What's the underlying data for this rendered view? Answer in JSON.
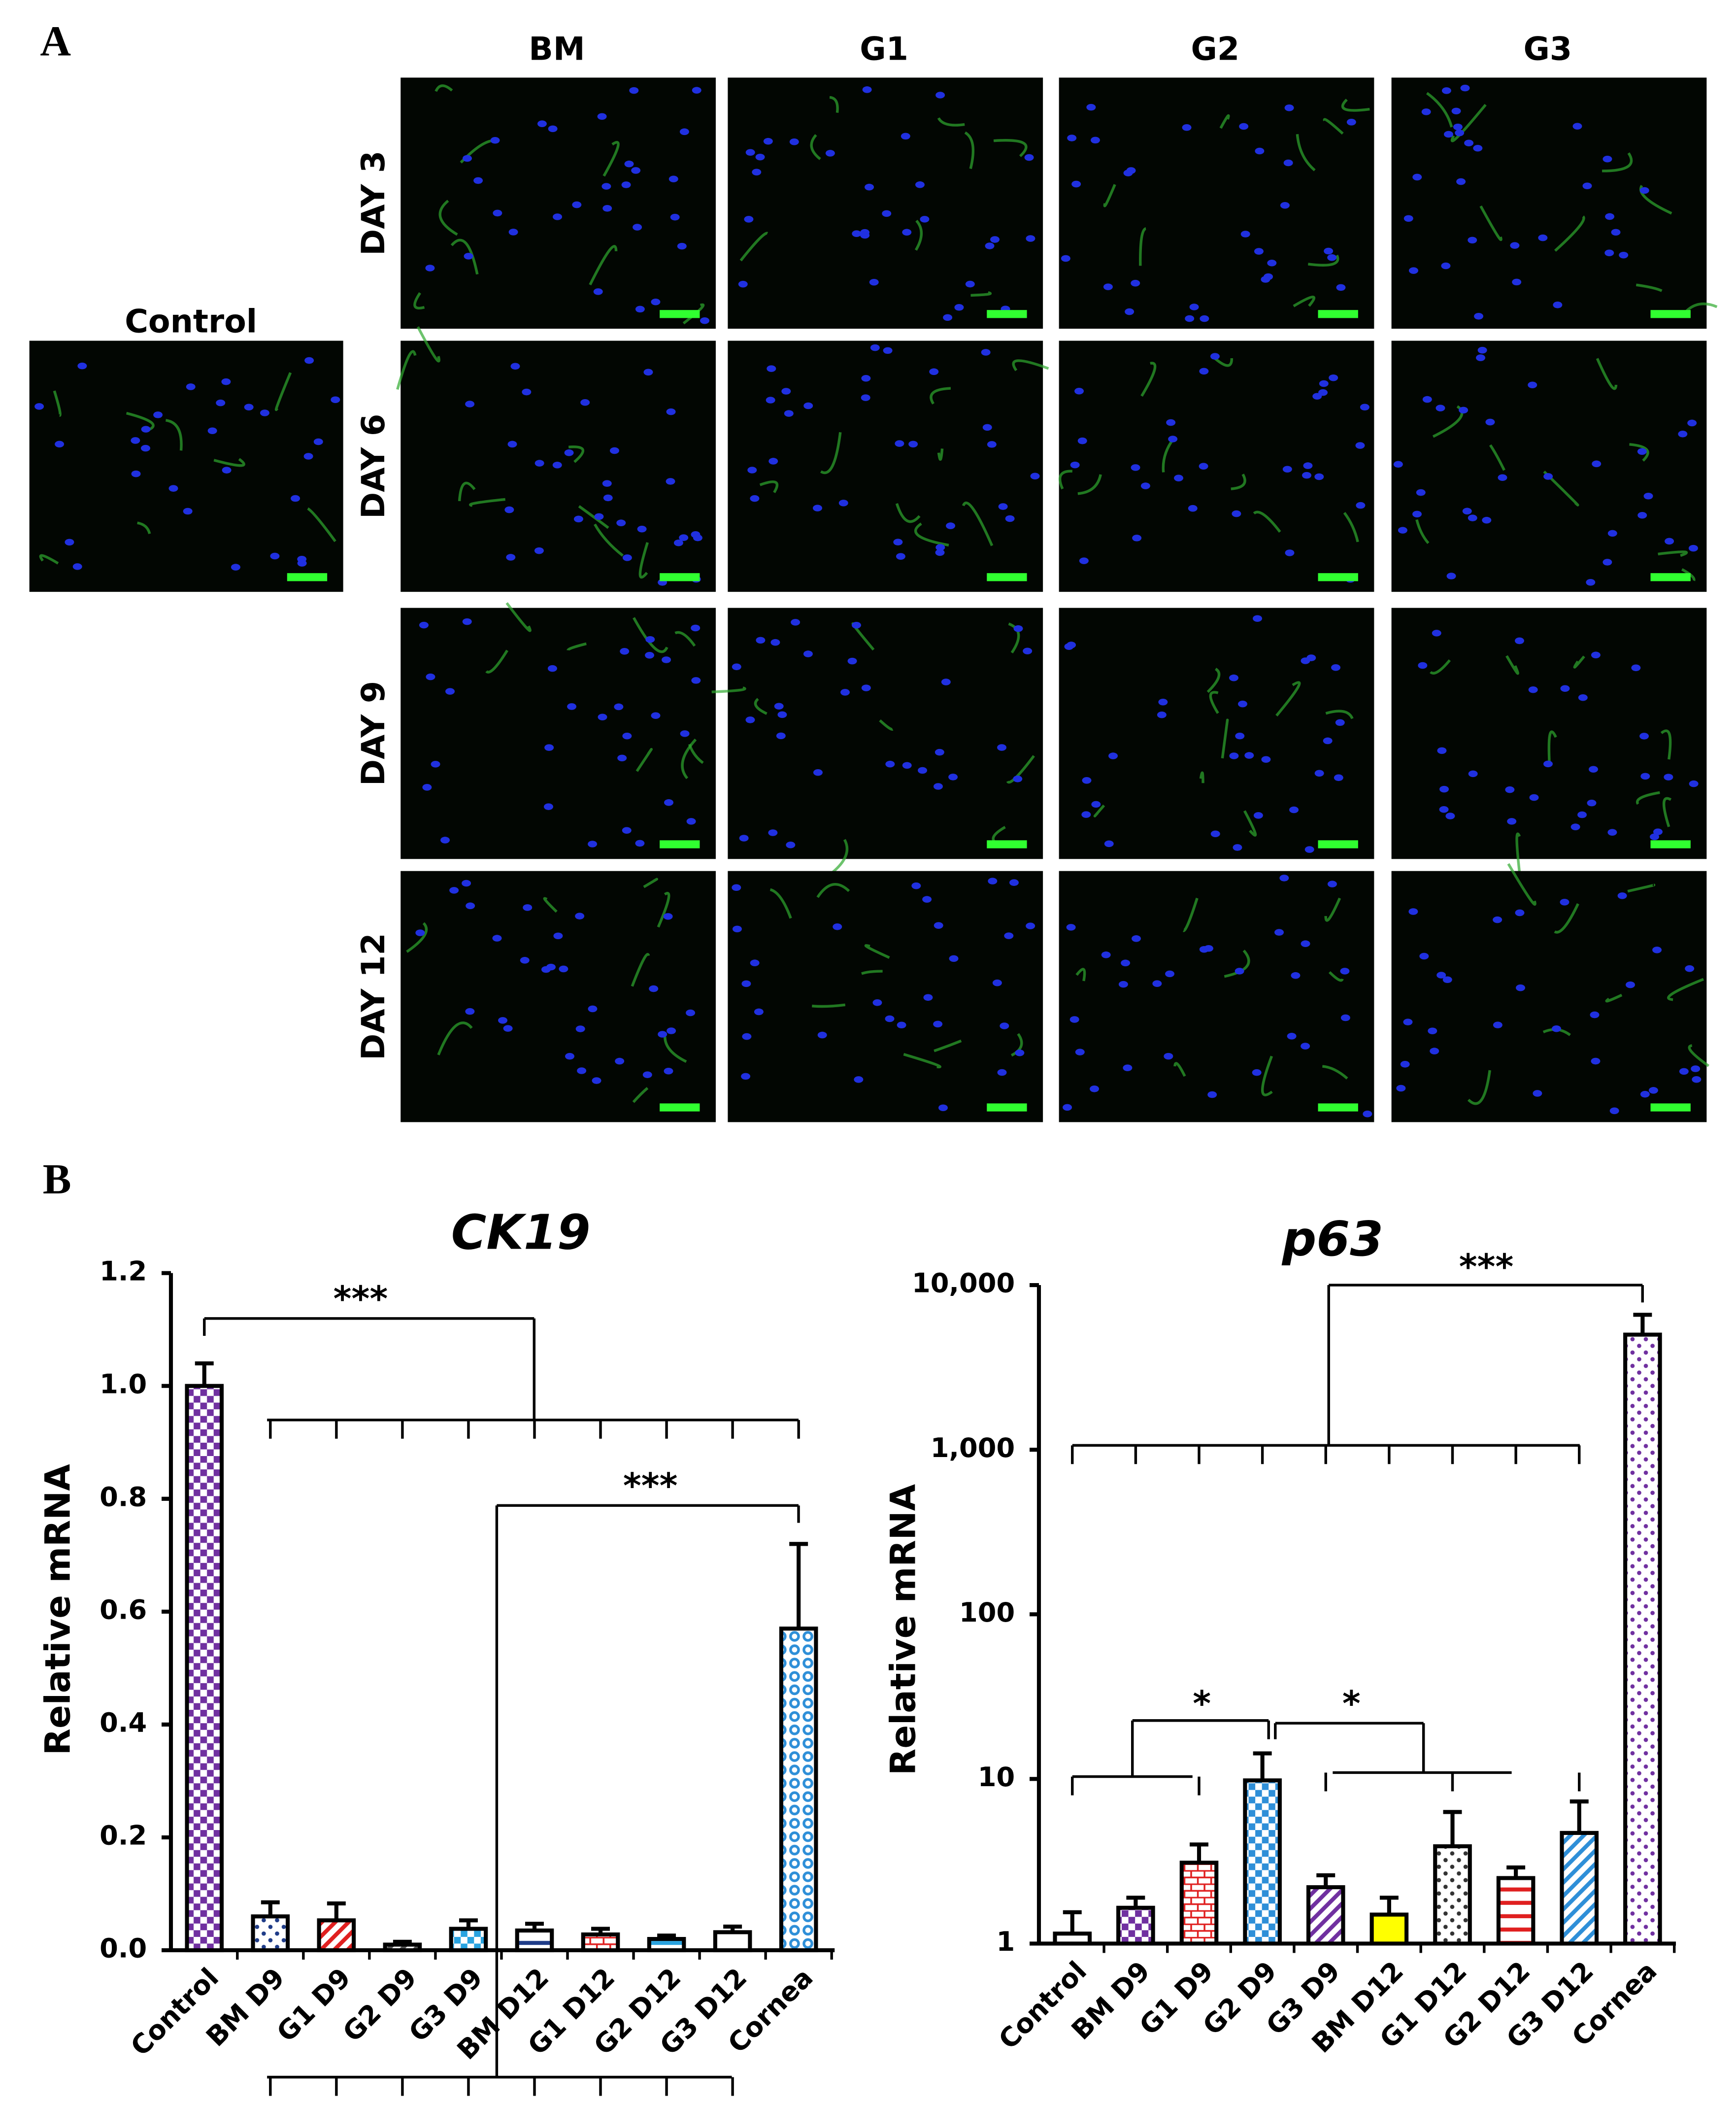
{
  "panel_a": {
    "label": "A",
    "columns": [
      "BM",
      "G1",
      "G2",
      "G3"
    ],
    "rows": [
      "DAY 3",
      "DAY 6",
      "DAY 9",
      "DAY 12"
    ],
    "control_label": "Control"
  },
  "panel_b_label": "B",
  "chart_data": [
    {
      "type": "bar",
      "title": "CK19",
      "y_label": "Relative mRNA",
      "categories": [
        "Control",
        "BM D9",
        "G1 D9",
        "G2 D9",
        "G3 D9",
        "BM D12",
        "G1 D12",
        "G2 D12",
        "G3 D12",
        "Cornea"
      ],
      "values": [
        1.0,
        0.06,
        0.053,
        0.01,
        0.038,
        0.035,
        0.028,
        0.02,
        0.032,
        0.57
      ],
      "errors": [
        0.04,
        0.025,
        0.03,
        0.005,
        0.015,
        0.012,
        0.01,
        0.006,
        0.01,
        0.15
      ],
      "colors": [
        "#7030a0",
        "#1f3c88",
        "#e02020",
        "#555555",
        "#29a3e0",
        "#1f3c88",
        "#e02020",
        "#29a3e0",
        "#ffffff",
        "#2e8fd8"
      ],
      "patterns": [
        "checker",
        "dots",
        "diag",
        "diag",
        "checker",
        "hstripes",
        "brick",
        "hstripes",
        "blank",
        "circles"
      ],
      "ylim": [
        0,
        1.2
      ],
      "yticks": [
        {
          "value": 0,
          "label": "0.0"
        },
        0.2,
        0.4,
        0.6,
        0.8,
        {
          "value": 1,
          "label": "1.0"
        },
        1.2
      ],
      "log_scale": false,
      "annotations": [
        "***",
        "***"
      ]
    },
    {
      "type": "bar",
      "title": "p63",
      "y_label": "Relative mRNA",
      "categories": [
        "Control",
        "BM D9",
        "G1 D9",
        "G2 D9",
        "G3 D9",
        "BM D12",
        "G1 D12",
        "G2 D12",
        "G3 D12",
        "Cornea"
      ],
      "values": [
        1.15,
        1.65,
        3.1,
        9.8,
        2.2,
        1.5,
        3.9,
        2.5,
        4.7,
        5000
      ],
      "errors": [
        0.4,
        0.25,
        0.9,
        4.5,
        0.4,
        0.4,
        2.4,
        0.4,
        2.6,
        1600
      ],
      "colors": [
        "#1f3c88",
        "#7030a0",
        "#e02020",
        "#2e8fd8",
        "#7030a0",
        "#ffff00",
        "#333333",
        "#e02020",
        "#2e8fd8",
        "#7030a0"
      ],
      "patterns": [
        "blank",
        "checker",
        "brick",
        "checker",
        "diag",
        "solid",
        "dots",
        "hstripes",
        "diag",
        "dots"
      ],
      "ylim": [
        1,
        10000
      ],
      "yticks": [
        1,
        10,
        100,
        {
          "value": 1000,
          "label": "1,000"
        },
        {
          "value": 10000,
          "label": "10,000"
        }
      ],
      "log_scale": true,
      "annotations": [
        "***",
        "*",
        "*"
      ]
    }
  ]
}
